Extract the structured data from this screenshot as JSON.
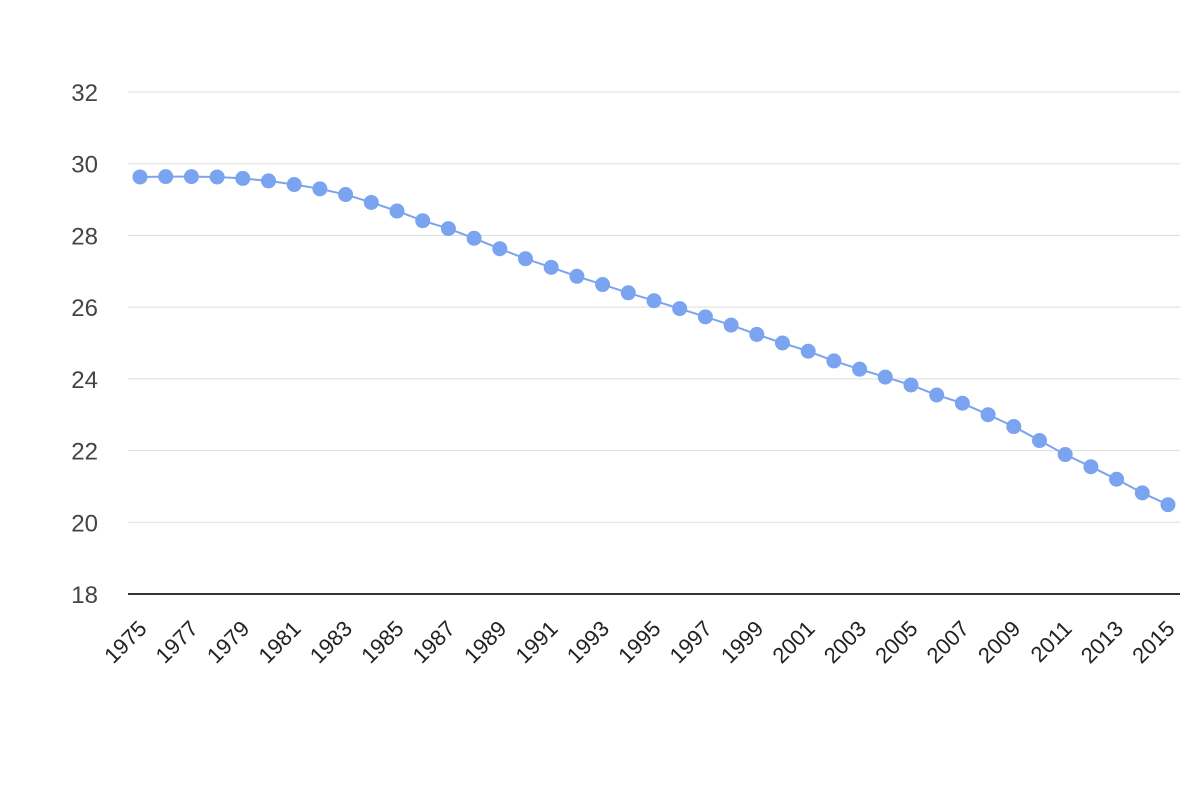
{
  "chart_data": {
    "type": "line",
    "title": "",
    "xlabel": "",
    "ylabel": "",
    "x": [
      1975,
      1976,
      1977,
      1978,
      1979,
      1980,
      1981,
      1982,
      1983,
      1984,
      1985,
      1986,
      1987,
      1988,
      1989,
      1990,
      1991,
      1992,
      1993,
      1994,
      1995,
      1996,
      1997,
      1998,
      1999,
      2000,
      2001,
      2002,
      2003,
      2004,
      2005,
      2006,
      2007,
      2008,
      2009,
      2010,
      2011,
      2012,
      2013,
      2014,
      2015
    ],
    "x_tick_labels": [
      "1975",
      "1977",
      "1979",
      "1981",
      "1983",
      "1985",
      "1987",
      "1989",
      "1991",
      "1993",
      "1995",
      "1997",
      "1999",
      "2001",
      "2003",
      "2005",
      "2007",
      "2009",
      "2011",
      "2013",
      "2015"
    ],
    "y_ticks": [
      18,
      20,
      22,
      24,
      26,
      28,
      30,
      32
    ],
    "ylim": [
      18,
      32
    ],
    "grid": true,
    "legend": "none",
    "series": [
      {
        "color": "#7aa3f0",
        "values": [
          29.63,
          29.64,
          29.64,
          29.63,
          29.59,
          29.52,
          29.42,
          29.3,
          29.14,
          28.92,
          28.68,
          28.41,
          28.19,
          27.92,
          27.63,
          27.35,
          27.11,
          26.86,
          26.63,
          26.4,
          26.18,
          25.96,
          25.73,
          25.5,
          25.24,
          25.0,
          24.77,
          24.5,
          24.27,
          24.05,
          23.83,
          23.55,
          23.32,
          23.0,
          22.67,
          22.28,
          21.89,
          21.55,
          21.2,
          20.82,
          20.49
        ]
      }
    ]
  }
}
